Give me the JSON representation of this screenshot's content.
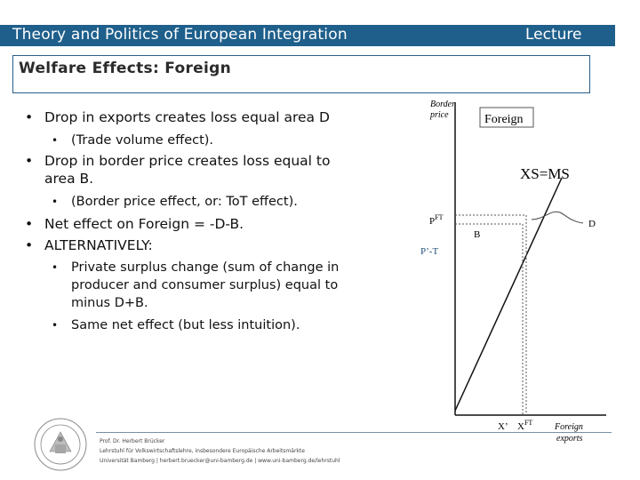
{
  "header": {
    "title": "Theory and Politics of European Integration",
    "lecture": "Lecture"
  },
  "slide_title": "Welfare Effects: Foreign",
  "bullets": [
    {
      "text": "Drop in exports creates loss equal area D"
    },
    {
      "text": "(Trade volume effect)."
    },
    {
      "text_line1": "Drop in border price creates loss equal to",
      "text_line2": "area B."
    },
    {
      "text": "(Border price effect, or: ToT effect)."
    },
    {
      "text": "Net effect on Foreign = -D-B."
    },
    {
      "text": "ALTERNATIVELY:"
    },
    {
      "line1": "Private surplus change (sum of change in",
      "line2": "producer and consumer surplus) equal to",
      "line3": "minus D+B."
    },
    {
      "text": "Same net effect (but less intuition)."
    }
  ],
  "diagram": {
    "y_axis_label_1": "Border",
    "y_axis_label_2": "price",
    "box_label": "Foreign",
    "curve_label": "XS=MS",
    "p_ft": "P",
    "p_ft_sup": "FT",
    "p_t": "P’-T",
    "area_b": "B",
    "area_d": "D",
    "x_prime": "X’",
    "x_ft": "X",
    "x_ft_sup": "FT",
    "x_axis_label_1": "Foreign",
    "x_axis_label_2": "exports",
    "colors": {
      "axis": "#111111",
      "dashed": "#555555",
      "arrow": "#444444"
    }
  },
  "footer": {
    "line1": "Prof. Dr. Herbert Brücker",
    "line2": "Lehrstuhl für Volkswirtschaftslehre, insbesondere Europäische Arbeitsmärkte",
    "line3": "Universität Bamberg | herbert.bruecker@uni-bamberg.de | www.uni-bamberg.de/lehrstuhl"
  }
}
